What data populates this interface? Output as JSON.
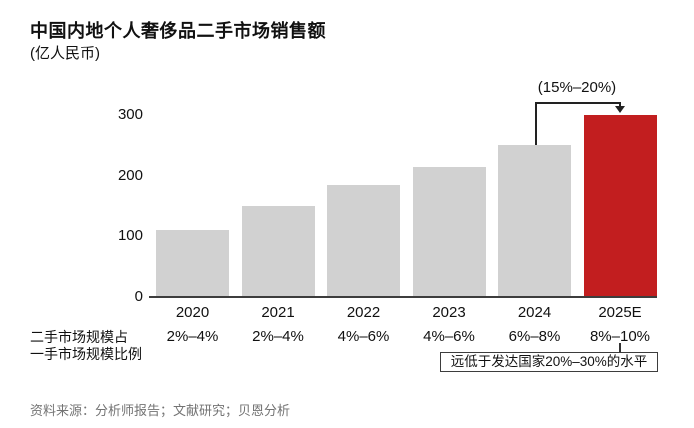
{
  "header": {
    "title": "中国内地个人奢侈品二手市场销售额",
    "unit": "(亿人民币)"
  },
  "annotation": {
    "label": "(15%–20%)"
  },
  "chart_data": {
    "type": "bar",
    "title": "中国内地个人奢侈品二手市场销售额",
    "unit_label": "(亿人民币)",
    "categories": [
      "2020",
      "2021",
      "2022",
      "2023",
      "2024",
      "2025E"
    ],
    "values": [
      110,
      150,
      185,
      215,
      250,
      300
    ],
    "highlight_index": 5,
    "ylim": [
      0,
      300
    ],
    "yticks": [
      0,
      100,
      200,
      300
    ],
    "grid": false,
    "legend": "none",
    "annotation": "(15%–20%)",
    "ratio_row": {
      "label_line1": "二手市场规模占",
      "label_line2": "一手市场规模比例",
      "values": [
        "2%–4%",
        "2%–4%",
        "4%–6%",
        "4%–6%",
        "6%–8%",
        "8%–10%"
      ]
    },
    "callout": "远低于发达国家20%–30%的水平"
  },
  "footer": {
    "source": "资料来源：分析师报告；文献研究；贝恩分析"
  },
  "colors": {
    "bar": "#d1d1d1",
    "highlight": "#c21e1f",
    "axis": "#3d3d3d",
    "text": "#111111",
    "muted": "#737373"
  }
}
